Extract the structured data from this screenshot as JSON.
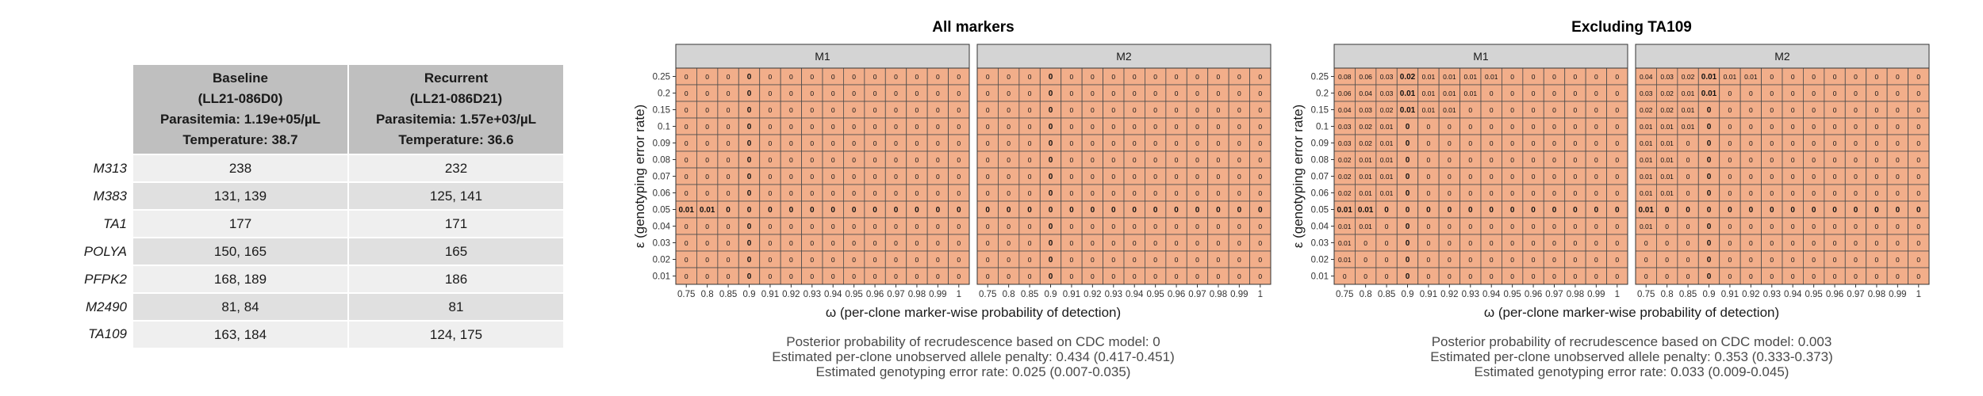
{
  "table": {
    "columns": [
      {
        "name": "Baseline",
        "id": "(LL21-086D0)",
        "parasitemia": "Parasitemia: 1.19e+05/µL",
        "temperature": "Temperature: 38.7"
      },
      {
        "name": "Recurrent",
        "id": "(LL21-086D21)",
        "parasitemia": "Parasitemia: 1.57e+03/µL",
        "temperature": "Temperature: 36.6"
      }
    ],
    "rows": [
      {
        "marker": "M313",
        "baseline": "238",
        "recurrent": "232"
      },
      {
        "marker": "M383",
        "baseline": "131, 139",
        "recurrent": "125, 141"
      },
      {
        "marker": "TA1",
        "baseline": "177",
        "recurrent": "171"
      },
      {
        "marker": "POLYA",
        "baseline": "150, 165",
        "recurrent": "165"
      },
      {
        "marker": "PFPK2",
        "baseline": "168, 189",
        "recurrent": "186"
      },
      {
        "marker": "M2490",
        "baseline": "81, 84",
        "recurrent": "81"
      },
      {
        "marker": "TA109",
        "baseline": "163, 184",
        "recurrent": "124, 175"
      }
    ]
  },
  "chart_data": [
    {
      "type": "heatmap",
      "title": "All markers",
      "xlabel": "ω (per-clone marker-wise probability of detection)",
      "ylabel": "ε (genotyping error rate)",
      "x": [
        "0.75",
        "0.8",
        "0.85",
        "0.9",
        "0.91",
        "0.92",
        "0.93",
        "0.94",
        "0.95",
        "0.96",
        "0.97",
        "0.98",
        "0.99",
        "1"
      ],
      "y": [
        "0.25",
        "0.2",
        "0.15",
        "0.1",
        "0.09",
        "0.08",
        "0.07",
        "0.06",
        "0.05",
        "0.04",
        "0.03",
        "0.02",
        "0.01"
      ],
      "bold_x": "0.9",
      "bold_y": "0.05",
      "cell_color": "#f2ae8a",
      "facets": [
        {
          "label": "M1",
          "values": [
            [
              "0",
              "0",
              "0",
              "0",
              "0",
              "0",
              "0",
              "0",
              "0",
              "0",
              "0",
              "0",
              "0",
              "0"
            ],
            [
              "0",
              "0",
              "0",
              "0",
              "0",
              "0",
              "0",
              "0",
              "0",
              "0",
              "0",
              "0",
              "0",
              "0"
            ],
            [
              "0",
              "0",
              "0",
              "0",
              "0",
              "0",
              "0",
              "0",
              "0",
              "0",
              "0",
              "0",
              "0",
              "0"
            ],
            [
              "0",
              "0",
              "0",
              "0",
              "0",
              "0",
              "0",
              "0",
              "0",
              "0",
              "0",
              "0",
              "0",
              "0"
            ],
            [
              "0",
              "0",
              "0",
              "0",
              "0",
              "0",
              "0",
              "0",
              "0",
              "0",
              "0",
              "0",
              "0",
              "0"
            ],
            [
              "0",
              "0",
              "0",
              "0",
              "0",
              "0",
              "0",
              "0",
              "0",
              "0",
              "0",
              "0",
              "0",
              "0"
            ],
            [
              "0",
              "0",
              "0",
              "0",
              "0",
              "0",
              "0",
              "0",
              "0",
              "0",
              "0",
              "0",
              "0",
              "0"
            ],
            [
              "0",
              "0",
              "0",
              "0",
              "0",
              "0",
              "0",
              "0",
              "0",
              "0",
              "0",
              "0",
              "0",
              "0"
            ],
            [
              "0.01",
              "0.01",
              "0",
              "0",
              "0",
              "0",
              "0",
              "0",
              "0",
              "0",
              "0",
              "0",
              "0",
              "0"
            ],
            [
              "0",
              "0",
              "0",
              "0",
              "0",
              "0",
              "0",
              "0",
              "0",
              "0",
              "0",
              "0",
              "0",
              "0"
            ],
            [
              "0",
              "0",
              "0",
              "0",
              "0",
              "0",
              "0",
              "0",
              "0",
              "0",
              "0",
              "0",
              "0",
              "0"
            ],
            [
              "0",
              "0",
              "0",
              "0",
              "0",
              "0",
              "0",
              "0",
              "0",
              "0",
              "0",
              "0",
              "0",
              "0"
            ],
            [
              "0",
              "0",
              "0",
              "0",
              "0",
              "0",
              "0",
              "0",
              "0",
              "0",
              "0",
              "0",
              "0",
              "0"
            ]
          ]
        },
        {
          "label": "M2",
          "values": [
            [
              "0",
              "0",
              "0",
              "0",
              "0",
              "0",
              "0",
              "0",
              "0",
              "0",
              "0",
              "0",
              "0",
              "0"
            ],
            [
              "0",
              "0",
              "0",
              "0",
              "0",
              "0",
              "0",
              "0",
              "0",
              "0",
              "0",
              "0",
              "0",
              "0"
            ],
            [
              "0",
              "0",
              "0",
              "0",
              "0",
              "0",
              "0",
              "0",
              "0",
              "0",
              "0",
              "0",
              "0",
              "0"
            ],
            [
              "0",
              "0",
              "0",
              "0",
              "0",
              "0",
              "0",
              "0",
              "0",
              "0",
              "0",
              "0",
              "0",
              "0"
            ],
            [
              "0",
              "0",
              "0",
              "0",
              "0",
              "0",
              "0",
              "0",
              "0",
              "0",
              "0",
              "0",
              "0",
              "0"
            ],
            [
              "0",
              "0",
              "0",
              "0",
              "0",
              "0",
              "0",
              "0",
              "0",
              "0",
              "0",
              "0",
              "0",
              "0"
            ],
            [
              "0",
              "0",
              "0",
              "0",
              "0",
              "0",
              "0",
              "0",
              "0",
              "0",
              "0",
              "0",
              "0",
              "0"
            ],
            [
              "0",
              "0",
              "0",
              "0",
              "0",
              "0",
              "0",
              "0",
              "0",
              "0",
              "0",
              "0",
              "0",
              "0"
            ],
            [
              "0",
              "0",
              "0",
              "0",
              "0",
              "0",
              "0",
              "0",
              "0",
              "0",
              "0",
              "0",
              "0",
              "0"
            ],
            [
              "0",
              "0",
              "0",
              "0",
              "0",
              "0",
              "0",
              "0",
              "0",
              "0",
              "0",
              "0",
              "0",
              "0"
            ],
            [
              "0",
              "0",
              "0",
              "0",
              "0",
              "0",
              "0",
              "0",
              "0",
              "0",
              "0",
              "0",
              "0",
              "0"
            ],
            [
              "0",
              "0",
              "0",
              "0",
              "0",
              "0",
              "0",
              "0",
              "0",
              "0",
              "0",
              "0",
              "0",
              "0"
            ],
            [
              "0",
              "0",
              "0",
              "0",
              "0",
              "0",
              "0",
              "0",
              "0",
              "0",
              "0",
              "0",
              "0",
              "0"
            ]
          ]
        }
      ],
      "caption": [
        "Posterior probability of recrudescence based on CDC model: 0",
        "Estimated per-clone unobserved allele penalty: 0.434 (0.417-0.451)",
        "Estimated genotyping error rate: 0.025 (0.007-0.035)"
      ]
    },
    {
      "type": "heatmap",
      "title": "Excluding TA109",
      "xlabel": "ω (per-clone marker-wise probability of detection)",
      "ylabel": "ε (genotyping error rate)",
      "x": [
        "0.75",
        "0.8",
        "0.85",
        "0.9",
        "0.91",
        "0.92",
        "0.93",
        "0.94",
        "0.95",
        "0.96",
        "0.97",
        "0.98",
        "0.99",
        "1"
      ],
      "y": [
        "0.25",
        "0.2",
        "0.15",
        "0.1",
        "0.09",
        "0.08",
        "0.07",
        "0.06",
        "0.05",
        "0.04",
        "0.03",
        "0.02",
        "0.01"
      ],
      "bold_x": "0.9",
      "bold_y": "0.05",
      "cell_color": "#f2ae8a",
      "facets": [
        {
          "label": "M1",
          "values": [
            [
              "0.08",
              "0.06",
              "0.03",
              "0.02",
              "0.01",
              "0.01",
              "0.01",
              "0.01",
              "0",
              "0",
              "0",
              "0",
              "0",
              "0"
            ],
            [
              "0.06",
              "0.04",
              "0.03",
              "0.01",
              "0.01",
              "0.01",
              "0.01",
              "0",
              "0",
              "0",
              "0",
              "0",
              "0",
              "0"
            ],
            [
              "0.04",
              "0.03",
              "0.02",
              "0.01",
              "0.01",
              "0.01",
              "0",
              "0",
              "0",
              "0",
              "0",
              "0",
              "0",
              "0"
            ],
            [
              "0.03",
              "0.02",
              "0.01",
              "0",
              "0",
              "0",
              "0",
              "0",
              "0",
              "0",
              "0",
              "0",
              "0",
              "0"
            ],
            [
              "0.03",
              "0.02",
              "0.01",
              "0",
              "0",
              "0",
              "0",
              "0",
              "0",
              "0",
              "0",
              "0",
              "0",
              "0"
            ],
            [
              "0.02",
              "0.01",
              "0.01",
              "0",
              "0",
              "0",
              "0",
              "0",
              "0",
              "0",
              "0",
              "0",
              "0",
              "0"
            ],
            [
              "0.02",
              "0.01",
              "0.01",
              "0",
              "0",
              "0",
              "0",
              "0",
              "0",
              "0",
              "0",
              "0",
              "0",
              "0"
            ],
            [
              "0.02",
              "0.01",
              "0.01",
              "0",
              "0",
              "0",
              "0",
              "0",
              "0",
              "0",
              "0",
              "0",
              "0",
              "0"
            ],
            [
              "0.01",
              "0.01",
              "0",
              "0",
              "0",
              "0",
              "0",
              "0",
              "0",
              "0",
              "0",
              "0",
              "0",
              "0"
            ],
            [
              "0.01",
              "0.01",
              "0",
              "0",
              "0",
              "0",
              "0",
              "0",
              "0",
              "0",
              "0",
              "0",
              "0",
              "0"
            ],
            [
              "0.01",
              "0",
              "0",
              "0",
              "0",
              "0",
              "0",
              "0",
              "0",
              "0",
              "0",
              "0",
              "0",
              "0"
            ],
            [
              "0.01",
              "0",
              "0",
              "0",
              "0",
              "0",
              "0",
              "0",
              "0",
              "0",
              "0",
              "0",
              "0",
              "0"
            ],
            [
              "0",
              "0",
              "0",
              "0",
              "0",
              "0",
              "0",
              "0",
              "0",
              "0",
              "0",
              "0",
              "0",
              "0"
            ]
          ]
        },
        {
          "label": "M2",
          "values": [
            [
              "0.04",
              "0.03",
              "0.02",
              "0.01",
              "0.01",
              "0.01",
              "0",
              "0",
              "0",
              "0",
              "0",
              "0",
              "0",
              "0"
            ],
            [
              "0.03",
              "0.02",
              "0.01",
              "0.01",
              "0",
              "0",
              "0",
              "0",
              "0",
              "0",
              "0",
              "0",
              "0",
              "0"
            ],
            [
              "0.02",
              "0.02",
              "0.01",
              "0",
              "0",
              "0",
              "0",
              "0",
              "0",
              "0",
              "0",
              "0",
              "0",
              "0"
            ],
            [
              "0.01",
              "0.01",
              "0.01",
              "0",
              "0",
              "0",
              "0",
              "0",
              "0",
              "0",
              "0",
              "0",
              "0",
              "0"
            ],
            [
              "0.01",
              "0.01",
              "0",
              "0",
              "0",
              "0",
              "0",
              "0",
              "0",
              "0",
              "0",
              "0",
              "0",
              "0"
            ],
            [
              "0.01",
              "0.01",
              "0",
              "0",
              "0",
              "0",
              "0",
              "0",
              "0",
              "0",
              "0",
              "0",
              "0",
              "0"
            ],
            [
              "0.01",
              "0.01",
              "0",
              "0",
              "0",
              "0",
              "0",
              "0",
              "0",
              "0",
              "0",
              "0",
              "0",
              "0"
            ],
            [
              "0.01",
              "0.01",
              "0",
              "0",
              "0",
              "0",
              "0",
              "0",
              "0",
              "0",
              "0",
              "0",
              "0",
              "0"
            ],
            [
              "0.01",
              "0",
              "0",
              "0",
              "0",
              "0",
              "0",
              "0",
              "0",
              "0",
              "0",
              "0",
              "0",
              "0"
            ],
            [
              "0.01",
              "0",
              "0",
              "0",
              "0",
              "0",
              "0",
              "0",
              "0",
              "0",
              "0",
              "0",
              "0",
              "0"
            ],
            [
              "0",
              "0",
              "0",
              "0",
              "0",
              "0",
              "0",
              "0",
              "0",
              "0",
              "0",
              "0",
              "0",
              "0"
            ],
            [
              "0",
              "0",
              "0",
              "0",
              "0",
              "0",
              "0",
              "0",
              "0",
              "0",
              "0",
              "0",
              "0",
              "0"
            ],
            [
              "0",
              "0",
              "0",
              "0",
              "0",
              "0",
              "0",
              "0",
              "0",
              "0",
              "0",
              "0",
              "0",
              "0"
            ]
          ]
        }
      ],
      "caption": [
        "Posterior probability of recrudescence based on CDC model: 0.003",
        "Estimated per-clone unobserved allele penalty: 0.353 (0.333-0.373)",
        "Estimated genotyping error rate: 0.033 (0.009-0.045)"
      ]
    }
  ]
}
